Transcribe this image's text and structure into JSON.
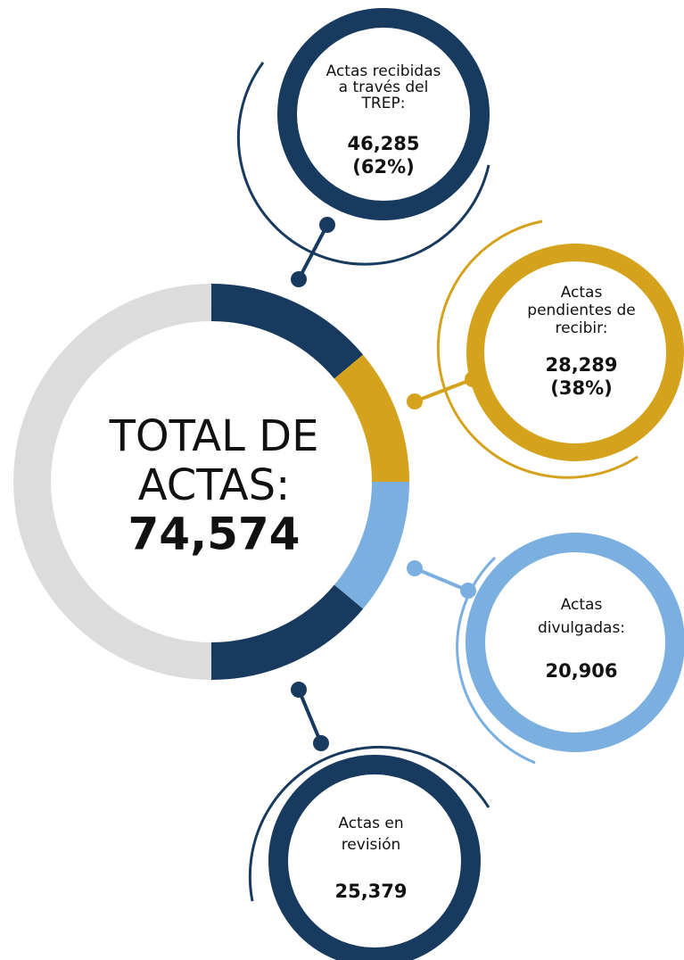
{
  "center": {
    "title_lines": [
      "TOTAL DE",
      "ACTAS:"
    ],
    "total": "74,574"
  },
  "nodes": [
    {
      "label_lines": [
        "Actas recibidas",
        "a través del",
        "TREP:"
      ],
      "value_lines": [
        "46,285",
        "(62%)"
      ]
    },
    {
      "label_lines": [
        "Actas",
        "pendientes de",
        "recibir:"
      ],
      "value_lines": [
        "28,289",
        "(38%)"
      ]
    },
    {
      "label_lines": [
        "Actas",
        "divulgadas:"
      ],
      "value_lines": [
        "20,906"
      ]
    },
    {
      "label_lines": [
        "Actas en",
        "revisión"
      ],
      "value_lines": [
        "25,379"
      ]
    }
  ]
}
